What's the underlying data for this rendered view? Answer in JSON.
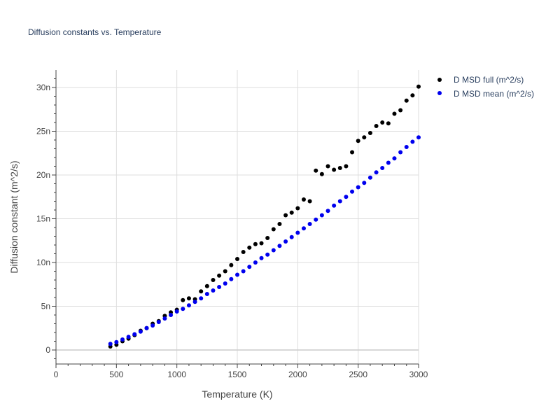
{
  "chart_data": {
    "type": "scatter",
    "title": "Diffusion constants vs. Temperature",
    "xlabel": "Temperature (K)",
    "ylabel": "Diffusion constant (m^2/s)",
    "xlim": [
      0,
      3000
    ],
    "ylim": [
      -1.6,
      32
    ],
    "x_ticks": [
      0,
      500,
      1000,
      1500,
      2000,
      2500,
      3000
    ],
    "x_tick_labels": [
      "0",
      "500",
      "1000",
      "1500",
      "2000",
      "2500",
      "3000"
    ],
    "y_ticks": [
      0,
      5,
      10,
      15,
      20,
      25,
      30
    ],
    "y_tick_labels": [
      "0",
      "5n",
      "10n",
      "15n",
      "20n",
      "25n",
      "30n"
    ],
    "grid": true,
    "legend_position": "top-right",
    "series": [
      {
        "name": "D MSD full (m^2/s)",
        "color": "#000000",
        "x": [
          450,
          500,
          550,
          600,
          650,
          700,
          750,
          800,
          850,
          900,
          950,
          1000,
          1050,
          1100,
          1150,
          1200,
          1250,
          1300,
          1350,
          1400,
          1450,
          1500,
          1550,
          1600,
          1650,
          1700,
          1750,
          1800,
          1850,
          1900,
          1950,
          2000,
          2050,
          2100,
          2150,
          2200,
          2250,
          2300,
          2350,
          2400,
          2450,
          2500,
          2550,
          2600,
          2650,
          2700,
          2750,
          2800,
          2850,
          2900,
          2950,
          3000
        ],
        "y": [
          0.4,
          0.6,
          1.0,
          1.3,
          1.7,
          2.2,
          2.5,
          3.0,
          3.3,
          3.9,
          4.3,
          4.6,
          5.7,
          5.9,
          5.8,
          6.7,
          7.3,
          8.0,
          8.5,
          9.0,
          9.7,
          10.4,
          11.2,
          11.7,
          12.1,
          12.2,
          12.8,
          13.8,
          14.4,
          15.4,
          15.7,
          16.2,
          17.2,
          17.0,
          20.5,
          20.1,
          21.0,
          20.6,
          20.8,
          21.0,
          22.6,
          23.9,
          24.3,
          24.8,
          25.6,
          26.0,
          25.9,
          27.0,
          27.4,
          28.5,
          29.1,
          30.1
        ]
      },
      {
        "name": "D MSD mean (m^2/s)",
        "color": "#0000ee",
        "x": [
          450,
          500,
          550,
          600,
          650,
          700,
          750,
          800,
          850,
          900,
          950,
          1000,
          1050,
          1100,
          1150,
          1200,
          1250,
          1300,
          1350,
          1400,
          1450,
          1500,
          1550,
          1600,
          1650,
          1700,
          1750,
          1800,
          1850,
          1900,
          1950,
          2000,
          2050,
          2100,
          2150,
          2200,
          2250,
          2300,
          2350,
          2400,
          2450,
          2500,
          2550,
          2600,
          2650,
          2700,
          2750,
          2800,
          2850,
          2900,
          2950,
          3000
        ],
        "y": [
          0.7,
          0.9,
          1.2,
          1.5,
          1.8,
          2.1,
          2.5,
          2.8,
          3.2,
          3.6,
          4.0,
          4.4,
          4.7,
          5.1,
          5.5,
          5.9,
          6.4,
          6.8,
          7.2,
          7.6,
          8.1,
          8.6,
          9.0,
          9.5,
          10.0,
          10.5,
          10.9,
          11.4,
          11.9,
          12.4,
          12.9,
          13.4,
          13.9,
          14.4,
          14.9,
          15.4,
          15.9,
          16.5,
          17.0,
          17.5,
          18.1,
          18.6,
          19.1,
          19.7,
          20.3,
          20.8,
          21.4,
          21.9,
          22.6,
          23.2,
          23.8,
          24.3
        ]
      }
    ]
  }
}
